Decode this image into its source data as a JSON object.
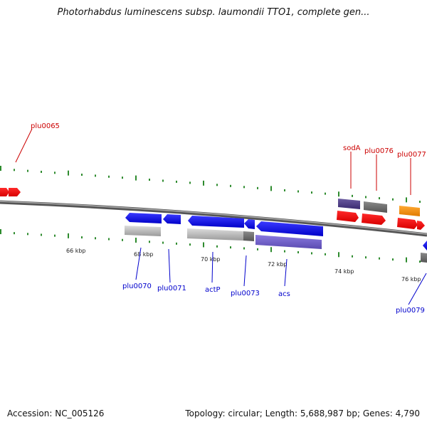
{
  "header": {
    "title": "Photorhabdus luminescens subsp. laumondii TTO1, complete gen..."
  },
  "footer": {
    "accession": "Accession: NC_005126",
    "summary": "Topology: circular; Length: 5,688,987 bp; Genes: 4,790"
  },
  "colors": {
    "forward_label": "#cc0000",
    "reverse_label": "#0000cc",
    "tick": "#2e8b2e",
    "backbone": "#777777"
  },
  "scale_labels": [
    "66 kbp",
    "68 kbp",
    "70 kbp",
    "72 kbp",
    "74 kbp",
    "76 kbp"
  ],
  "genes_top": [
    {
      "name": "plu0065",
      "color": "#cc0000"
    },
    {
      "name": "sodA",
      "color": "#cc0000"
    },
    {
      "name": "plu0076",
      "color": "#cc0000"
    },
    {
      "name": "plu0077",
      "color": "#cc0000"
    }
  ],
  "genes_bottom": [
    {
      "name": "plu0070",
      "color": "#0000cc"
    },
    {
      "name": "plu0071",
      "color": "#0000cc"
    },
    {
      "name": "actP",
      "color": "#0000cc"
    },
    {
      "name": "plu0073",
      "color": "#0000cc"
    },
    {
      "name": "acs",
      "color": "#0000cc"
    },
    {
      "name": "plu0079",
      "color": "#0000cc"
    }
  ]
}
